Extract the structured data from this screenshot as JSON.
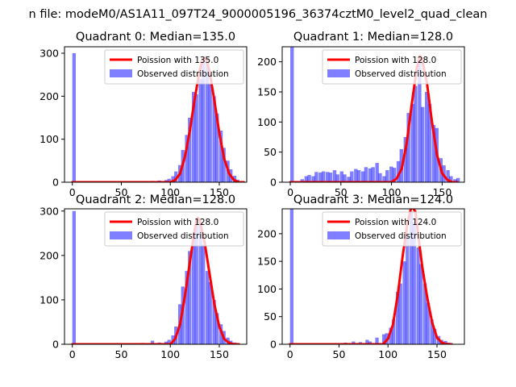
{
  "figure_title": "n file: modeM0/AS1A11_097T24_9000005196_36374cztM0_level2_quad_clean",
  "colors": {
    "poisson": "#ff0000",
    "observed": "#0000ff",
    "axis": "#000000",
    "background": "#ffffff"
  },
  "chart_data": [
    {
      "type": "bar+line",
      "title": "Quadrant 0: Median=135.0",
      "median": 135.0,
      "legend": {
        "position": "top-right",
        "entries": [
          "Poission with 135.0",
          "Observed distribution"
        ]
      },
      "xlim": [
        -8,
        178
      ],
      "ylim": [
        0,
        315
      ],
      "xticks": [
        0,
        50,
        100,
        150
      ],
      "yticks": [
        0,
        100,
        200,
        300
      ],
      "hist": {
        "bin_width": 3.5,
        "bins": [
          [
            0,
            300
          ],
          [
            73,
            2
          ],
          [
            80,
            3
          ],
          [
            87,
            4
          ],
          [
            94,
            5
          ],
          [
            97,
            8
          ],
          [
            101,
            14
          ],
          [
            104,
            25
          ],
          [
            108,
            40
          ],
          [
            111,
            75
          ],
          [
            115,
            110
          ],
          [
            118,
            150
          ],
          [
            122,
            210
          ],
          [
            125,
            205
          ],
          [
            129,
            240
          ],
          [
            132,
            285
          ],
          [
            136,
            290
          ],
          [
            139,
            230
          ],
          [
            143,
            200
          ],
          [
            146,
            160
          ],
          [
            150,
            120
          ],
          [
            153,
            80
          ],
          [
            157,
            50
          ],
          [
            160,
            30
          ],
          [
            164,
            15
          ],
          [
            167,
            6
          ],
          [
            171,
            2
          ]
        ]
      },
      "poisson": {
        "mean": 135.0,
        "x": [
          0,
          100,
          105,
          110,
          115,
          120,
          125,
          130,
          133,
          135,
          137,
          140,
          145,
          150,
          155,
          160,
          165,
          170,
          175
        ],
        "y": [
          0,
          0,
          5,
          20,
          60,
          120,
          195,
          260,
          285,
          290,
          285,
          258,
          190,
          115,
          55,
          20,
          5,
          0,
          0
        ]
      }
    },
    {
      "type": "bar+line",
      "title": "Quadrant 1: Median=128.0",
      "median": 128.0,
      "legend": {
        "position": "top-right",
        "entries": [
          "Poission with 128.0",
          "Observed distribution"
        ]
      },
      "xlim": [
        -8,
        172
      ],
      "ylim": [
        0,
        225
      ],
      "xticks": [
        0,
        50,
        100,
        150
      ],
      "yticks": [
        0,
        50,
        100,
        150,
        200
      ],
      "hist": {
        "bin_width": 3.5,
        "bins": [
          [
            0,
            225
          ],
          [
            10,
            5
          ],
          [
            14,
            10
          ],
          [
            17,
            12
          ],
          [
            21,
            10
          ],
          [
            24,
            17
          ],
          [
            28,
            16
          ],
          [
            31,
            18
          ],
          [
            35,
            17
          ],
          [
            38,
            16
          ],
          [
            42,
            20
          ],
          [
            45,
            13
          ],
          [
            49,
            18
          ],
          [
            52,
            13
          ],
          [
            56,
            9
          ],
          [
            59,
            18
          ],
          [
            63,
            22
          ],
          [
            66,
            20
          ],
          [
            70,
            18
          ],
          [
            73,
            25
          ],
          [
            77,
            23
          ],
          [
            80,
            25
          ],
          [
            84,
            32
          ],
          [
            87,
            15
          ],
          [
            91,
            10
          ],
          [
            94,
            20
          ],
          [
            98,
            26
          ],
          [
            101,
            24
          ],
          [
            105,
            35
          ],
          [
            108,
            55
          ],
          [
            112,
            75
          ],
          [
            115,
            115
          ],
          [
            119,
            130
          ],
          [
            122,
            160
          ],
          [
            126,
            205
          ],
          [
            129,
            125
          ],
          [
            133,
            150
          ],
          [
            136,
            130
          ],
          [
            140,
            95
          ],
          [
            143,
            90
          ],
          [
            147,
            40
          ],
          [
            150,
            28
          ],
          [
            154,
            20
          ],
          [
            157,
            10
          ],
          [
            161,
            5
          ],
          [
            164,
            7
          ]
        ]
      },
      "poisson": {
        "mean": 128.0,
        "x": [
          0,
          100,
          105,
          110,
          115,
          120,
          125,
          128,
          130,
          135,
          140,
          145,
          150,
          155,
          160,
          165
        ],
        "y": [
          0,
          0,
          6,
          22,
          65,
          130,
          190,
          210,
          205,
          165,
          100,
          45,
          15,
          4,
          0,
          0
        ]
      }
    },
    {
      "type": "bar+line",
      "title": "Quadrant 2: Median=128.0",
      "median": 128.0,
      "legend": {
        "position": "top-right",
        "entries": [
          "Poission with 128.0",
          "Observed distribution"
        ]
      },
      "xlim": [
        -8,
        178
      ],
      "ylim": [
        0,
        305
      ],
      "xticks": [
        0,
        50,
        100,
        150
      ],
      "yticks": [
        0,
        100,
        200,
        300
      ],
      "hist": {
        "bin_width": 3.5,
        "bins": [
          [
            0,
            300
          ],
          [
            70,
            3
          ],
          [
            80,
            8
          ],
          [
            87,
            4
          ],
          [
            94,
            6
          ],
          [
            97,
            10
          ],
          [
            101,
            20
          ],
          [
            104,
            40
          ],
          [
            108,
            90
          ],
          [
            111,
            130
          ],
          [
            115,
            165
          ],
          [
            118,
            210
          ],
          [
            122,
            240
          ],
          [
            125,
            280
          ],
          [
            129,
            275
          ],
          [
            132,
            225
          ],
          [
            136,
            165
          ],
          [
            139,
            140
          ],
          [
            143,
            100
          ],
          [
            146,
            70
          ],
          [
            150,
            45
          ],
          [
            153,
            30
          ],
          [
            157,
            15
          ],
          [
            160,
            8
          ],
          [
            164,
            4
          ]
        ]
      },
      "poisson": {
        "mean": 128.0,
        "x": [
          0,
          100,
          105,
          110,
          115,
          120,
          125,
          128,
          130,
          135,
          140,
          145,
          150,
          155,
          160,
          165,
          170
        ],
        "y": [
          0,
          0,
          12,
          45,
          110,
          185,
          260,
          285,
          280,
          230,
          160,
          90,
          40,
          12,
          3,
          0,
          0
        ]
      }
    },
    {
      "type": "bar+line",
      "title": "Quadrant 3: Median=124.0",
      "median": 124.0,
      "legend": {
        "position": "top-right",
        "entries": [
          "Poission with 124.0",
          "Observed distribution"
        ]
      },
      "xlim": [
        -8,
        178
      ],
      "ylim": [
        0,
        245
      ],
      "xticks": [
        0,
        50,
        100,
        150
      ],
      "yticks": [
        0,
        50,
        100,
        150,
        200
      ],
      "hist": {
        "bin_width": 3.5,
        "bins": [
          [
            0,
            245
          ],
          [
            55,
            3
          ],
          [
            63,
            5
          ],
          [
            70,
            4
          ],
          [
            77,
            8
          ],
          [
            80,
            5
          ],
          [
            87,
            12
          ],
          [
            94,
            18
          ],
          [
            97,
            20
          ],
          [
            101,
            30
          ],
          [
            104,
            45
          ],
          [
            108,
            95
          ],
          [
            111,
            110
          ],
          [
            115,
            150
          ],
          [
            118,
            200
          ],
          [
            122,
            240
          ],
          [
            125,
            220
          ],
          [
            129,
            175
          ],
          [
            132,
            145
          ],
          [
            136,
            110
          ],
          [
            139,
            75
          ],
          [
            143,
            45
          ],
          [
            146,
            28
          ],
          [
            150,
            15
          ],
          [
            153,
            8
          ],
          [
            157,
            6
          ],
          [
            160,
            3
          ]
        ]
      },
      "poisson": {
        "mean": 124.0,
        "x": [
          0,
          95,
          100,
          105,
          110,
          115,
          120,
          124,
          128,
          130,
          135,
          140,
          145,
          150,
          155,
          160,
          165
        ],
        "y": [
          0,
          0,
          10,
          35,
          90,
          160,
          220,
          250,
          240,
          210,
          140,
          85,
          40,
          12,
          3,
          0,
          0
        ]
      }
    }
  ]
}
